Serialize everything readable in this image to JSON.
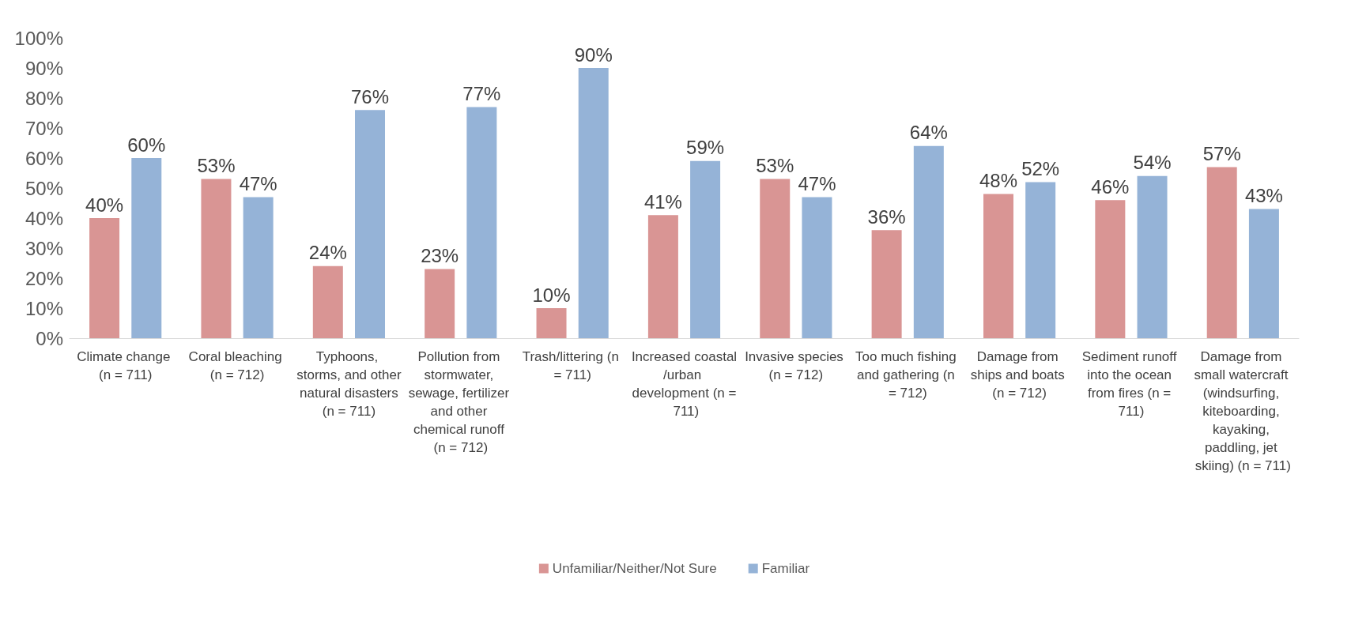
{
  "chart_data": {
    "type": "bar",
    "categories": [
      "Climate change (n = 711)",
      "Coral bleaching (n = 712)",
      "Typhoons, storms, and other natural disasters (n = 711)",
      "Pollution from stormwater, sewage, fertilizer and other chemical runoff (n = 712)",
      "Trash/littering (n = 711)",
      "Increased coastal/urban development (n = 711)",
      "Invasive species (n = 712)",
      "Too much fishing and gathering (n = 712)",
      "Damage from ships and boats (n = 712)",
      "Sediment runoff into the ocean from fires (n = 711)",
      "Damage from small watercraft (windsurfing, kiteboarding, kayaking, paddling, jet skiing) (n = 711)"
    ],
    "series": [
      {
        "name": "Unfamiliar/Neither/Not Sure",
        "color": "#d99594",
        "values": [
          40,
          53,
          24,
          23,
          10,
          41,
          53,
          36,
          48,
          46,
          57
        ],
        "value_labels": [
          "40%",
          "53%",
          "24%",
          "23%",
          "10%",
          "41%",
          "53%",
          "36%",
          "48%",
          "46%",
          "57%"
        ]
      },
      {
        "name": "Familiar",
        "color": "#95b3d7",
        "values": [
          60,
          47,
          76,
          77,
          90,
          59,
          47,
          64,
          52,
          54,
          43
        ],
        "value_labels": [
          "60%",
          "47%",
          "76%",
          "77%",
          "90%",
          "59%",
          "47%",
          "64%",
          "52%",
          "54%",
          "43%"
        ]
      }
    ],
    "ylim": [
      0,
      100
    ],
    "yticks": [
      {
        "value": 0,
        "label": "0%"
      },
      {
        "value": 10,
        "label": "10%"
      },
      {
        "value": 20,
        "label": "20%"
      },
      {
        "value": 30,
        "label": "30%"
      },
      {
        "value": 40,
        "label": "40%"
      },
      {
        "value": 50,
        "label": "50%"
      },
      {
        "value": 60,
        "label": "60%"
      },
      {
        "value": 70,
        "label": "70%"
      },
      {
        "value": 80,
        "label": "80%"
      },
      {
        "value": 90,
        "label": "90%"
      },
      {
        "value": 100,
        "label": "100%"
      }
    ],
    "grid": false,
    "legend": "bottom"
  }
}
